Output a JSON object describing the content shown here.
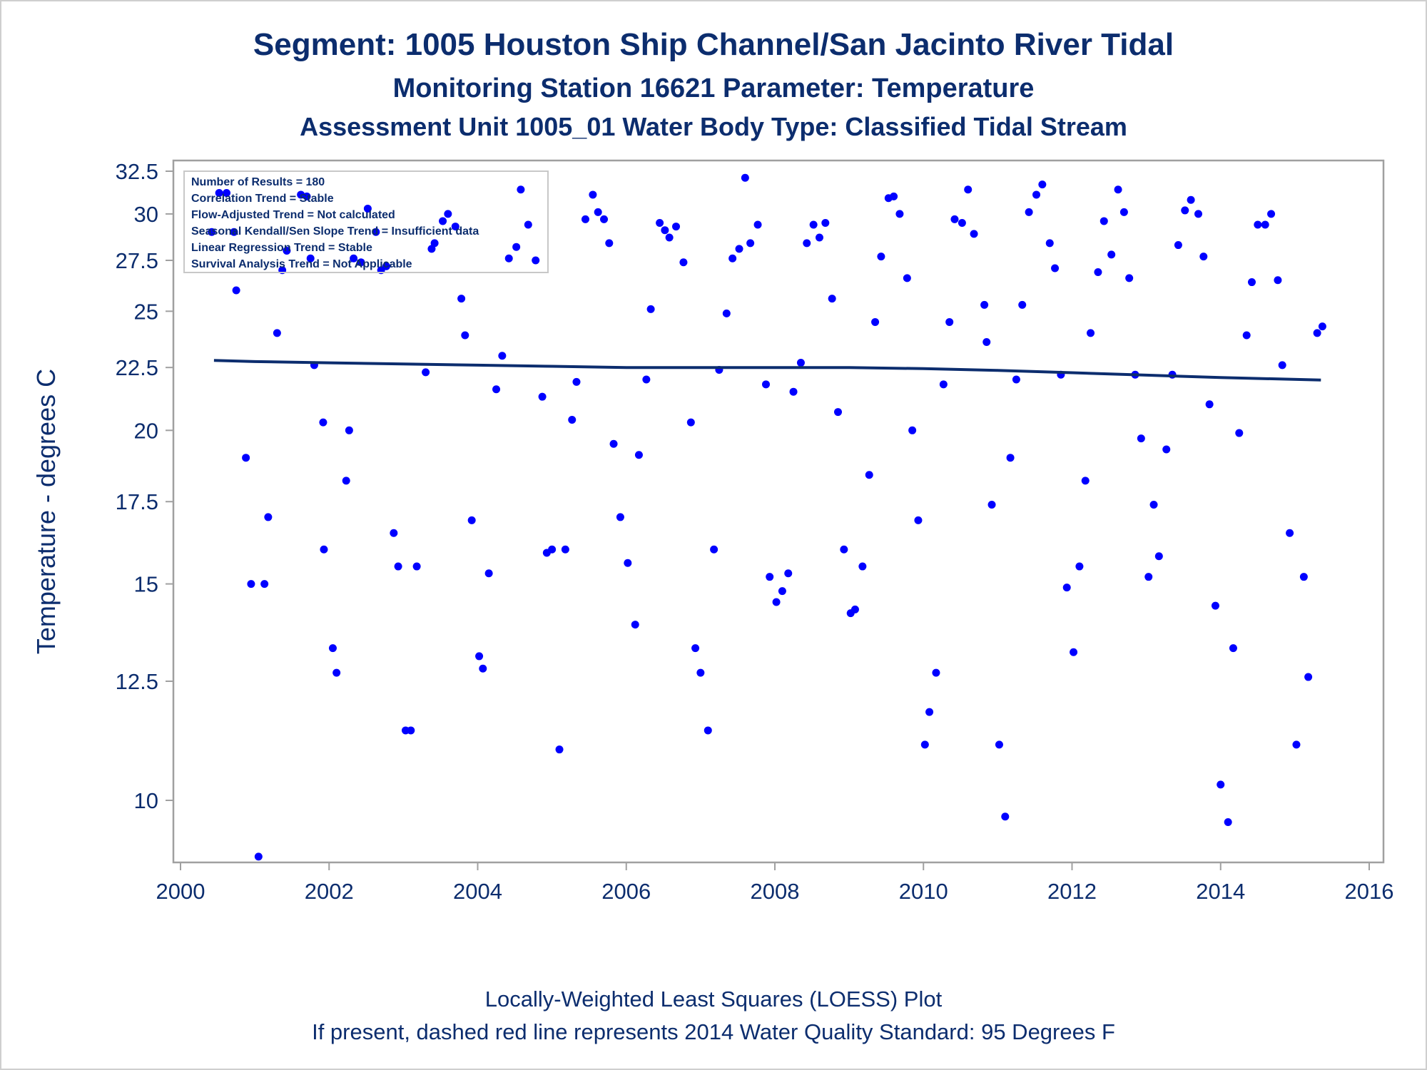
{
  "chart_data": {
    "type": "scatter",
    "title": "Segment: 1005  Houston Ship Channel/San Jacinto River Tidal",
    "subtitle": "Monitoring Station 16621 Parameter: Temperature",
    "subtitle2": "Assessment Unit 1005_01   Water Body Type: Classified Tidal Stream",
    "xlabel": "",
    "ylabel": "Temperature - degrees C",
    "xlim": [
      2000,
      2016
    ],
    "ylim": [
      8.8,
      32.8
    ],
    "y_scale": "log",
    "x_ticks": [
      "2000",
      "2002",
      "2004",
      "2006",
      "2008",
      "2010",
      "2012",
      "2014",
      "2016"
    ],
    "y_ticks": [
      "10",
      "12.5",
      "15",
      "17.5",
      "20",
      "22.5",
      "25",
      "27.5",
      "30",
      "32.5"
    ],
    "stats_box": [
      "Number of Results = 180",
      "Correlation Trend = Stable",
      "Flow-Adjusted Trend = Not calculated",
      "Seasonal Kendall/Sen Slope Trend = Insufficient data",
      "Linear Regression Trend = Stable",
      "Survival Analysis Trend = Not Applicable"
    ],
    "stats_box_position": "top-left",
    "footnote1": "Locally-Weighted Least Squares (LOESS) Plot",
    "footnote2": "If present, dashed red line represents 2014 Water Quality Standard: 95   Degrees F",
    "colors": {
      "points": "#0000ff",
      "line": "#0c2d6e",
      "text": "#0c2d6e",
      "axis": "#a0a0a0"
    },
    "loess": [
      [
        2000.45,
        22.8
      ],
      [
        2001.0,
        22.75
      ],
      [
        2002.0,
        22.7
      ],
      [
        2003.0,
        22.65
      ],
      [
        2004.0,
        22.6
      ],
      [
        2005.0,
        22.55
      ],
      [
        2006.0,
        22.5
      ],
      [
        2007.0,
        22.5
      ],
      [
        2008.0,
        22.5
      ],
      [
        2009.0,
        22.5
      ],
      [
        2010.0,
        22.45
      ],
      [
        2011.0,
        22.38
      ],
      [
        2012.0,
        22.28
      ],
      [
        2013.0,
        22.18
      ],
      [
        2014.0,
        22.08
      ],
      [
        2015.35,
        21.98
      ]
    ],
    "points": [
      [
        2000.42,
        29.0
      ],
      [
        2000.52,
        31.2
      ],
      [
        2000.62,
        31.2
      ],
      [
        2000.72,
        29.0
      ],
      [
        2000.75,
        26.0
      ],
      [
        2000.88,
        19.0
      ],
      [
        2000.95,
        15.0
      ],
      [
        2001.05,
        9.0
      ],
      [
        2001.13,
        15.0
      ],
      [
        2001.18,
        17.0
      ],
      [
        2001.3,
        24.0
      ],
      [
        2001.37,
        27.0
      ],
      [
        2001.43,
        28.0
      ],
      [
        2001.62,
        31.1
      ],
      [
        2001.7,
        31.0
      ],
      [
        2001.75,
        27.6
      ],
      [
        2001.8,
        22.6
      ],
      [
        2001.92,
        20.3
      ],
      [
        2001.93,
        16.0
      ],
      [
        2002.05,
        13.3
      ],
      [
        2002.1,
        12.7
      ],
      [
        2002.23,
        18.2
      ],
      [
        2002.27,
        20.0
      ],
      [
        2002.33,
        27.6
      ],
      [
        2002.43,
        27.4
      ],
      [
        2002.52,
        30.3
      ],
      [
        2002.63,
        29.0
      ],
      [
        2002.7,
        27.0
      ],
      [
        2002.77,
        27.2
      ],
      [
        2002.87,
        16.5
      ],
      [
        2002.93,
        15.5
      ],
      [
        2003.03,
        11.4
      ],
      [
        2003.1,
        11.4
      ],
      [
        2003.18,
        15.5
      ],
      [
        2003.3,
        22.3
      ],
      [
        2003.38,
        28.1
      ],
      [
        2003.42,
        28.4
      ],
      [
        2003.53,
        29.6
      ],
      [
        2003.6,
        30.0
      ],
      [
        2003.7,
        29.3
      ],
      [
        2003.78,
        25.6
      ],
      [
        2003.83,
        23.9
      ],
      [
        2003.92,
        16.9
      ],
      [
        2004.02,
        13.1
      ],
      [
        2004.07,
        12.8
      ],
      [
        2004.15,
        15.3
      ],
      [
        2004.25,
        21.6
      ],
      [
        2004.33,
        23.0
      ],
      [
        2004.42,
        27.6
      ],
      [
        2004.52,
        28.2
      ],
      [
        2004.58,
        31.4
      ],
      [
        2004.68,
        29.4
      ],
      [
        2004.78,
        27.5
      ],
      [
        2004.87,
        21.3
      ],
      [
        2004.93,
        15.9
      ],
      [
        2005.0,
        16.0
      ],
      [
        2005.1,
        11.0
      ],
      [
        2005.18,
        16.0
      ],
      [
        2005.27,
        20.4
      ],
      [
        2005.33,
        21.9
      ],
      [
        2005.45,
        29.7
      ],
      [
        2005.55,
        31.1
      ],
      [
        2005.62,
        30.1
      ],
      [
        2005.7,
        29.7
      ],
      [
        2005.77,
        28.4
      ],
      [
        2005.83,
        19.5
      ],
      [
        2005.92,
        17.0
      ],
      [
        2006.02,
        15.6
      ],
      [
        2006.12,
        13.9
      ],
      [
        2006.17,
        19.1
      ],
      [
        2006.27,
        22.0
      ],
      [
        2006.33,
        25.1
      ],
      [
        2006.45,
        29.5
      ],
      [
        2006.52,
        29.1
      ],
      [
        2006.58,
        28.7
      ],
      [
        2006.67,
        29.3
      ],
      [
        2006.77,
        27.4
      ],
      [
        2006.87,
        20.3
      ],
      [
        2006.93,
        13.3
      ],
      [
        2007.0,
        12.7
      ],
      [
        2007.1,
        11.4
      ],
      [
        2007.18,
        16.0
      ],
      [
        2007.25,
        22.4
      ],
      [
        2007.35,
        24.9
      ],
      [
        2007.43,
        27.6
      ],
      [
        2007.52,
        28.1
      ],
      [
        2007.6,
        32.1
      ],
      [
        2007.67,
        28.4
      ],
      [
        2007.77,
        29.4
      ],
      [
        2007.88,
        21.8
      ],
      [
        2007.93,
        15.2
      ],
      [
        2008.02,
        14.5
      ],
      [
        2008.1,
        14.8
      ],
      [
        2008.18,
        15.3
      ],
      [
        2008.25,
        21.5
      ],
      [
        2008.35,
        22.7
      ],
      [
        2008.43,
        28.4
      ],
      [
        2008.52,
        29.4
      ],
      [
        2008.6,
        28.7
      ],
      [
        2008.68,
        29.5
      ],
      [
        2008.77,
        25.6
      ],
      [
        2008.85,
        20.7
      ],
      [
        2008.93,
        16.0
      ],
      [
        2009.02,
        14.2
      ],
      [
        2009.08,
        14.3
      ],
      [
        2009.18,
        15.5
      ],
      [
        2009.27,
        18.4
      ],
      [
        2009.35,
        24.5
      ],
      [
        2009.43,
        27.7
      ],
      [
        2009.53,
        30.9
      ],
      [
        2009.6,
        31.0
      ],
      [
        2009.68,
        30.0
      ],
      [
        2009.78,
        26.6
      ],
      [
        2009.85,
        20.0
      ],
      [
        2009.93,
        16.9
      ],
      [
        2010.02,
        11.1
      ],
      [
        2010.08,
        11.8
      ],
      [
        2010.17,
        12.7
      ],
      [
        2010.27,
        21.8
      ],
      [
        2010.35,
        24.5
      ],
      [
        2010.42,
        29.7
      ],
      [
        2010.52,
        29.5
      ],
      [
        2010.6,
        31.4
      ],
      [
        2010.68,
        28.9
      ],
      [
        2010.82,
        25.3
      ],
      [
        2010.85,
        23.6
      ],
      [
        2010.92,
        17.4
      ],
      [
        2011.02,
        11.1
      ],
      [
        2011.1,
        9.7
      ],
      [
        2011.17,
        19.0
      ],
      [
        2011.25,
        22.0
      ],
      [
        2011.33,
        25.3
      ],
      [
        2011.42,
        30.1
      ],
      [
        2011.52,
        31.1
      ],
      [
        2011.6,
        31.7
      ],
      [
        2011.7,
        28.4
      ],
      [
        2011.77,
        27.1
      ],
      [
        2011.85,
        22.2
      ],
      [
        2011.93,
        14.9
      ],
      [
        2012.02,
        13.2
      ],
      [
        2012.1,
        15.5
      ],
      [
        2012.18,
        18.2
      ],
      [
        2012.25,
        24.0
      ],
      [
        2012.35,
        26.9
      ],
      [
        2012.43,
        29.6
      ],
      [
        2012.53,
        27.8
      ],
      [
        2012.62,
        31.4
      ],
      [
        2012.7,
        30.1
      ],
      [
        2012.77,
        26.6
      ],
      [
        2012.85,
        22.2
      ],
      [
        2012.93,
        19.7
      ],
      [
        2013.03,
        15.2
      ],
      [
        2013.1,
        17.4
      ],
      [
        2013.17,
        15.8
      ],
      [
        2013.27,
        19.3
      ],
      [
        2013.35,
        22.2
      ],
      [
        2013.43,
        28.3
      ],
      [
        2013.52,
        30.2
      ],
      [
        2013.6,
        30.8
      ],
      [
        2013.7,
        30.0
      ],
      [
        2013.77,
        27.7
      ],
      [
        2013.85,
        21.0
      ],
      [
        2013.93,
        14.4
      ],
      [
        2014.0,
        10.3
      ],
      [
        2014.1,
        9.6
      ],
      [
        2014.17,
        13.3
      ],
      [
        2014.25,
        19.9
      ],
      [
        2014.35,
        23.9
      ],
      [
        2014.42,
        26.4
      ],
      [
        2014.5,
        29.4
      ],
      [
        2014.6,
        29.4
      ],
      [
        2014.68,
        30.0
      ],
      [
        2014.77,
        26.5
      ],
      [
        2014.83,
        22.6
      ],
      [
        2014.93,
        16.5
      ],
      [
        2015.02,
        11.1
      ],
      [
        2015.12,
        15.2
      ],
      [
        2015.18,
        12.6
      ],
      [
        2015.3,
        24.0
      ],
      [
        2015.37,
        24.3
      ]
    ]
  }
}
